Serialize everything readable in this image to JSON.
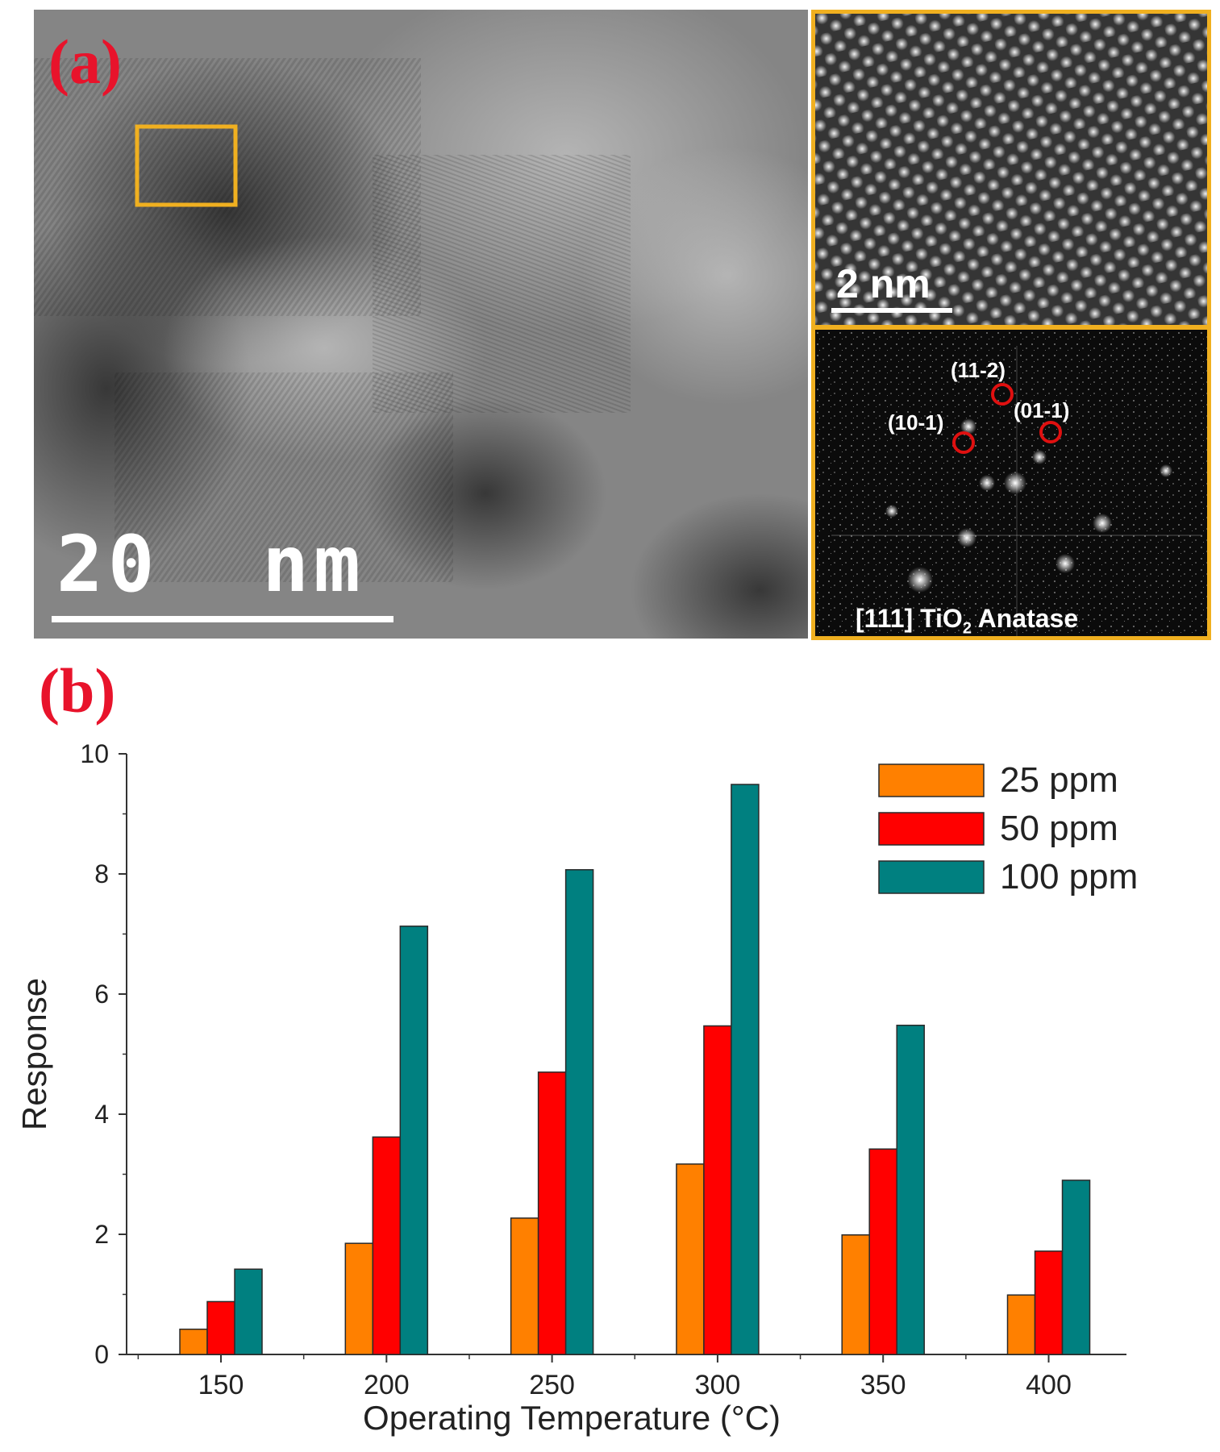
{
  "panel_a": {
    "label": "(a)",
    "main_scale": "20  nm",
    "inset_scale": "2 nm",
    "fft_spots": [
      "(11-2)",
      "(01-1)",
      "(10-1)"
    ],
    "zone_axis": "[111] TiO",
    "zone_axis_sub": "2",
    "zone_axis_tail": " Anatase",
    "frame_color": "#f0b020"
  },
  "panel_b": {
    "label": "(b)"
  },
  "chart_data": {
    "type": "bar",
    "title": "",
    "xlabel": "Operating Temperature (°C)",
    "ylabel": "Response",
    "categories": [
      "150",
      "200",
      "250",
      "300",
      "350",
      "400"
    ],
    "ylim": [
      0,
      10
    ],
    "yticks": [
      0,
      2,
      4,
      6,
      8,
      10
    ],
    "grid": false,
    "legend_position": "top-right",
    "series": [
      {
        "name": "25 ppm",
        "color": "#ff8000",
        "values": [
          0.42,
          1.85,
          2.27,
          3.17,
          1.99,
          0.99
        ]
      },
      {
        "name": "50 ppm",
        "color": "#ff0000",
        "values": [
          0.88,
          3.62,
          4.7,
          5.47,
          3.42,
          1.72
        ]
      },
      {
        "name": "100 ppm",
        "color": "#008080",
        "values": [
          1.42,
          7.13,
          8.07,
          9.49,
          5.48,
          2.9
        ]
      }
    ]
  }
}
